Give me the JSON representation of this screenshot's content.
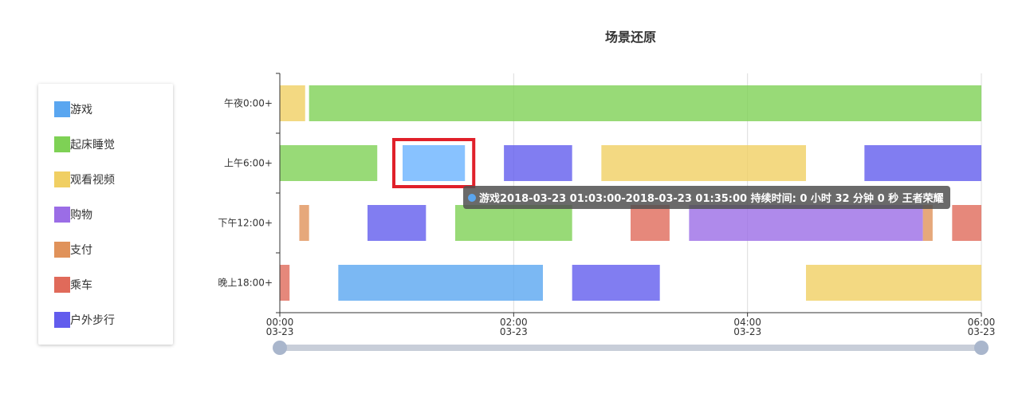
{
  "chart_data": {
    "type": "timeline",
    "title": "场景还原",
    "categories": [
      "午夜0:00+",
      "上午6:00+",
      "下午12:00+",
      "晚上18:00+"
    ],
    "x_ticks": [
      {
        "time": "00:00",
        "date": "03-23",
        "hour": 0
      },
      {
        "time": "02:00",
        "date": "03-23",
        "hour": 2
      },
      {
        "time": "04:00",
        "date": "03-23",
        "hour": 4
      },
      {
        "time": "06:00",
        "date": "03-23",
        "hour": 6
      }
    ],
    "x_range": [
      "2018-03-23 00:00",
      "2018-03-23 06:00"
    ],
    "grid": true,
    "legend_position": "left",
    "series": [
      {
        "name": "游戏",
        "color": "#5aa6f0"
      },
      {
        "name": "起床睡觉",
        "color": "#7ed155"
      },
      {
        "name": "观看视频",
        "color": "#f0cf63"
      },
      {
        "name": "购物",
        "color": "#9b6de6"
      },
      {
        "name": "支付",
        "color": "#e0925a"
      },
      {
        "name": "乘车",
        "color": "#e06a5a"
      },
      {
        "name": "户外步行",
        "color": "#625ced"
      }
    ],
    "segments": [
      {
        "row": 0,
        "type": "观看视频",
        "start": "00:00",
        "end": "00:13"
      },
      {
        "row": 0,
        "type": "起床睡觉",
        "start": "00:15",
        "end": "06:00"
      },
      {
        "row": 1,
        "type": "起床睡觉",
        "start": "00:00",
        "end": "00:50"
      },
      {
        "row": 1,
        "type": "游戏",
        "start": "01:03",
        "end": "01:35",
        "highlight": true
      },
      {
        "row": 1,
        "type": "户外步行",
        "start": "01:55",
        "end": "02:30"
      },
      {
        "row": 1,
        "type": "观看视频",
        "start": "02:45",
        "end": "04:30"
      },
      {
        "row": 1,
        "type": "户外步行",
        "start": "05:00",
        "end": "06:00"
      },
      {
        "row": 2,
        "type": "支付",
        "start": "00:10",
        "end": "00:15"
      },
      {
        "row": 2,
        "type": "户外步行",
        "start": "00:45",
        "end": "01:15"
      },
      {
        "row": 2,
        "type": "起床睡觉",
        "start": "01:30",
        "end": "02:30"
      },
      {
        "row": 2,
        "type": "乘车",
        "start": "03:00",
        "end": "03:20"
      },
      {
        "row": 2,
        "type": "购物",
        "start": "03:30",
        "end": "05:30"
      },
      {
        "row": 2,
        "type": "支付",
        "start": "05:30",
        "end": "05:35"
      },
      {
        "row": 2,
        "type": "乘车",
        "start": "05:45",
        "end": "06:00"
      },
      {
        "row": 3,
        "type": "乘车",
        "start": "00:00",
        "end": "00:05"
      },
      {
        "row": 3,
        "type": "游戏",
        "start": "00:30",
        "end": "02:15"
      },
      {
        "row": 3,
        "type": "户外步行",
        "start": "02:30",
        "end": "03:15"
      },
      {
        "row": 3,
        "type": "观看视频",
        "start": "04:30",
        "end": "06:00"
      }
    ]
  },
  "tooltip": {
    "text": "游戏2018-03-23 01:03:00-2018-03-23 01:35:00 持续时间: 0 小时 32 分钟 0 秒 王者荣耀",
    "color": "#5aa6f0"
  },
  "data_zoom": {
    "start": 0,
    "end": 100
  }
}
